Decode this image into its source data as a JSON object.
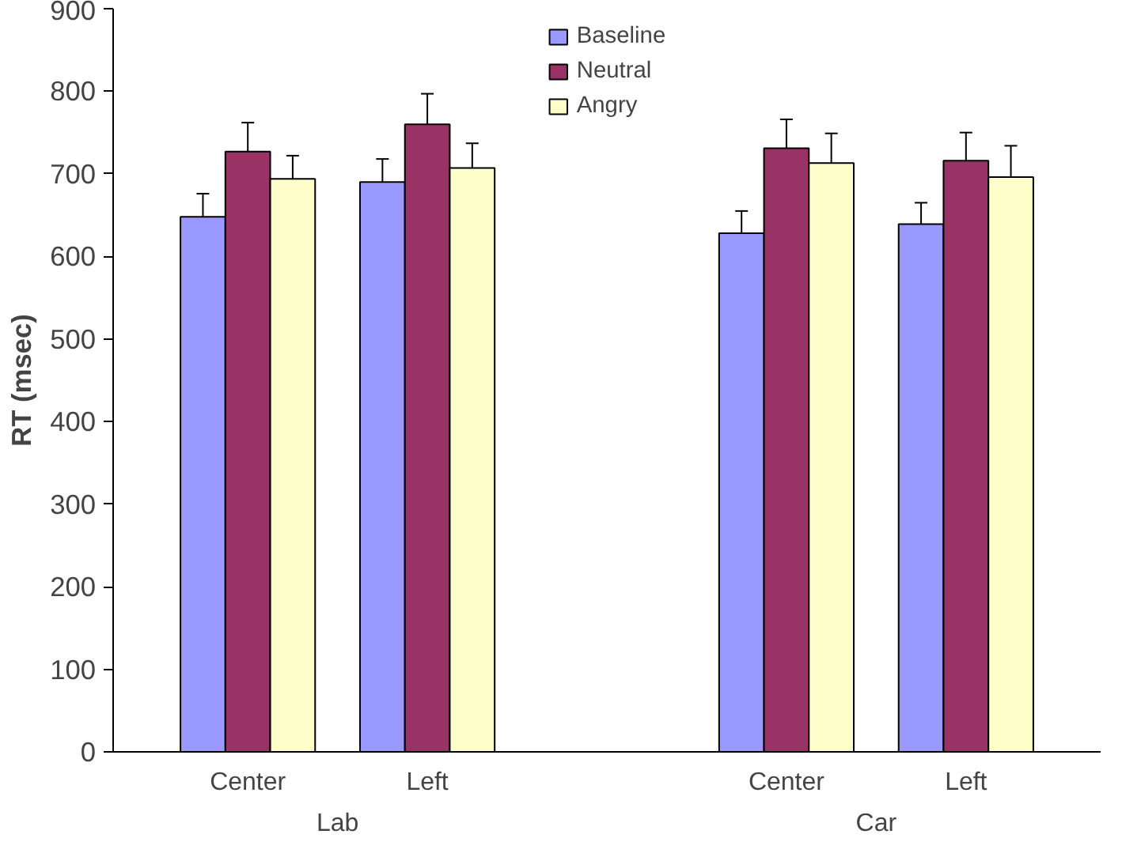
{
  "chart_data": {
    "type": "bar",
    "ylabel": "RT (msec)",
    "categories": [
      "Center",
      "Left",
      null,
      "Center",
      "Left"
    ],
    "series": [
      {
        "name": "Baseline",
        "color": "#9999ff",
        "values": [
          648,
          690,
          null,
          628,
          639
        ],
        "errors": [
          28,
          28,
          null,
          27,
          26
        ]
      },
      {
        "name": "Neutral",
        "color": "#993366",
        "values": [
          727,
          760,
          null,
          731,
          716
        ],
        "errors": [
          35,
          37,
          null,
          35,
          34
        ]
      },
      {
        "name": "Angry",
        "color": "#ffffcc",
        "values": [
          694,
          707,
          null,
          713,
          696
        ],
        "errors": [
          28,
          30,
          null,
          36,
          38
        ]
      }
    ],
    "annotations": [
      "Lab",
      "Car"
    ],
    "ylim": [
      0,
      900
    ],
    "yticks": [
      0,
      100,
      200,
      300,
      400,
      500,
      600,
      700,
      800,
      900
    ],
    "grid": false,
    "legend": "top"
  }
}
